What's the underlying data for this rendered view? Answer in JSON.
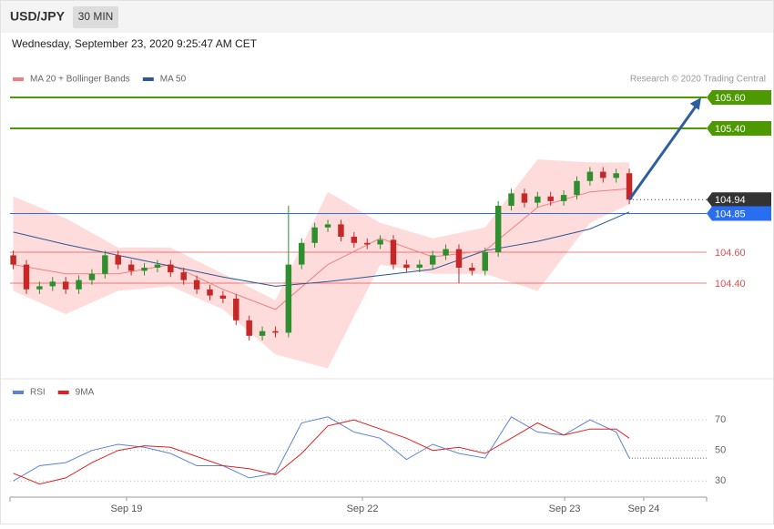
{
  "header": {
    "symbol": "USD/JPY",
    "interval": "30 MIN",
    "timestamp": "Wednesday, September 23, 2020 9:25:47 AM CET"
  },
  "chart_data": [
    {
      "type": "candlestick",
      "credit": "Research © 2020 Trading Central",
      "xlim": [
        -0.25,
        52.9
      ],
      "ylim": [
        103.8,
        105.8
      ],
      "up_color": "#2f8f2f",
      "down_color": "#c62828",
      "band_color": "#ffdcdc",
      "x": [
        0,
        1,
        2,
        3,
        4,
        5,
        6,
        7,
        8,
        9,
        10,
        11,
        12,
        13,
        14,
        15,
        16,
        17,
        18,
        19,
        20,
        21,
        22,
        23,
        24,
        25,
        26,
        27,
        28,
        29,
        30,
        31,
        32,
        33,
        34,
        35,
        36,
        37,
        38,
        39,
        40,
        41,
        42,
        43,
        44,
        45,
        46,
        47
      ],
      "open": [
        104.58,
        104.52,
        104.36,
        104.38,
        104.41,
        104.36,
        104.42,
        104.46,
        104.58,
        104.52,
        104.48,
        104.5,
        104.52,
        104.47,
        104.42,
        104.36,
        104.32,
        104.3,
        104.16,
        104.06,
        104.09,
        104.08,
        104.52,
        104.66,
        104.76,
        104.78,
        104.7,
        104.66,
        104.65,
        104.68,
        104.52,
        104.5,
        104.52,
        104.58,
        104.62,
        104.5,
        104.48,
        104.6,
        104.9,
        104.98,
        104.92,
        104.96,
        104.93,
        104.97,
        105.06,
        105.12,
        105.08,
        105.11
      ],
      "high": [
        104.61,
        104.55,
        104.41,
        104.44,
        104.44,
        104.45,
        104.49,
        104.61,
        104.61,
        104.55,
        104.53,
        104.55,
        104.55,
        104.5,
        104.45,
        104.39,
        104.35,
        104.33,
        104.19,
        104.12,
        104.12,
        104.9,
        104.69,
        104.79,
        104.81,
        104.81,
        104.73,
        104.69,
        104.71,
        104.71,
        104.55,
        104.55,
        104.61,
        104.65,
        104.65,
        104.53,
        104.63,
        104.93,
        105.01,
        105.01,
        104.99,
        104.99,
        105.0,
        105.09,
        105.15,
        105.15,
        105.14,
        105.14
      ],
      "low": [
        104.49,
        104.33,
        104.33,
        104.35,
        104.33,
        104.33,
        104.39,
        104.43,
        104.49,
        104.45,
        104.45,
        104.47,
        104.44,
        104.39,
        104.33,
        104.29,
        104.27,
        104.13,
        104.03,
        104.03,
        104.05,
        104.05,
        104.49,
        104.63,
        104.73,
        104.67,
        104.63,
        104.62,
        104.62,
        104.49,
        104.47,
        104.47,
        104.49,
        104.55,
        104.4,
        104.45,
        104.45,
        104.57,
        104.87,
        104.89,
        104.89,
        104.9,
        104.9,
        104.94,
        105.03,
        105.05,
        105.05,
        104.91
      ],
      "close": [
        104.52,
        104.36,
        104.38,
        104.41,
        104.36,
        104.42,
        104.46,
        104.58,
        104.52,
        104.48,
        104.5,
        104.52,
        104.47,
        104.42,
        104.36,
        104.32,
        104.3,
        104.16,
        104.06,
        104.09,
        104.08,
        104.52,
        104.66,
        104.76,
        104.78,
        104.7,
        104.66,
        104.65,
        104.68,
        104.52,
        104.5,
        104.52,
        104.58,
        104.62,
        104.5,
        104.48,
        104.6,
        104.9,
        104.98,
        104.92,
        104.96,
        104.93,
        104.97,
        105.06,
        105.12,
        105.08,
        105.11,
        104.94
      ],
      "bands": {
        "x": [
          0,
          4,
          8,
          12,
          16,
          20,
          24,
          28,
          32,
          36,
          40,
          44,
          47
        ],
        "upper": [
          104.96,
          104.82,
          104.63,
          104.63,
          104.46,
          104.29,
          104.99,
          104.79,
          104.69,
          104.76,
          105.2,
          105.18,
          105.18
        ],
        "lower": [
          104.35,
          104.2,
          104.35,
          104.38,
          104.23,
          103.94,
          103.85,
          104.52,
          104.46,
          104.46,
          104.35,
          104.79,
          104.91
        ]
      },
      "series": [
        {
          "name": "MA 20 + Bollinger Bands",
          "color": "#f08080",
          "x": [
            0,
            4,
            8,
            12,
            16,
            20,
            24,
            28,
            32,
            36,
            40,
            44,
            47
          ],
          "values": [
            104.52,
            104.46,
            104.46,
            104.52,
            104.36,
            104.23,
            104.52,
            104.69,
            104.57,
            104.61,
            104.89,
            104.99,
            105.01
          ]
        },
        {
          "name": "MA 50",
          "color": "#2b5797",
          "x": [
            0,
            4,
            8,
            12,
            16,
            20,
            24,
            28,
            32,
            36,
            40,
            44,
            47
          ],
          "values": [
            104.73,
            104.65,
            104.58,
            104.51,
            104.44,
            104.38,
            104.41,
            104.45,
            104.49,
            104.61,
            104.67,
            104.75,
            104.86
          ]
        }
      ],
      "levels": [
        {
          "value": 105.6,
          "label": "105.60",
          "color": "#4c9a00",
          "box": true,
          "dotted": false
        },
        {
          "value": 105.4,
          "label": "105.40",
          "color": "#4c9a00",
          "box": true,
          "dotted": false
        },
        {
          "value": 104.94,
          "label": "104.94",
          "color": "#333333",
          "box": true,
          "dotted": true
        },
        {
          "value": 104.85,
          "label": "104.85",
          "color": "#2a6ef0",
          "box": true,
          "dotted": false
        },
        {
          "value": 104.6,
          "label": "104.60",
          "color": "#e05050",
          "box": false,
          "dotted": false
        },
        {
          "value": 104.4,
          "label": "104.40",
          "color": "#e05050",
          "box": false,
          "dotted": false
        }
      ]
    },
    {
      "type": "line",
      "xlim": [
        -0.25,
        52.9
      ],
      "ylim": [
        20,
        82
      ],
      "yticks": [
        30,
        50,
        70
      ],
      "grid": true,
      "xticks": [
        {
          "value": 8.64,
          "label": "Sep 19"
        },
        {
          "value": 26.64,
          "label": "Sep 22"
        },
        {
          "value": 42.07,
          "label": "Sep 23"
        },
        {
          "value": 48.1,
          "label": "Sep 24"
        }
      ],
      "x": [
        0,
        2,
        4,
        6,
        8,
        10,
        12,
        14,
        16,
        18,
        20,
        22,
        24,
        26,
        28,
        30,
        32,
        34,
        36,
        38,
        40,
        42,
        44,
        46,
        47
      ],
      "series": [
        {
          "name": "RSI",
          "color": "#5b84d6",
          "values": [
            30,
            40,
            42,
            50,
            54,
            52,
            48,
            40,
            40,
            32,
            35,
            68,
            72,
            62,
            58,
            44,
            54,
            48,
            45,
            72,
            62,
            60,
            70,
            62,
            45
          ]
        },
        {
          "name": "9MA",
          "color": "#e02020",
          "values": [
            35,
            28,
            32,
            42,
            50,
            53,
            52,
            46,
            40,
            38,
            34,
            48,
            66,
            70,
            64,
            58,
            50,
            52,
            48,
            58,
            68,
            60,
            64,
            64,
            58
          ]
        }
      ]
    }
  ]
}
